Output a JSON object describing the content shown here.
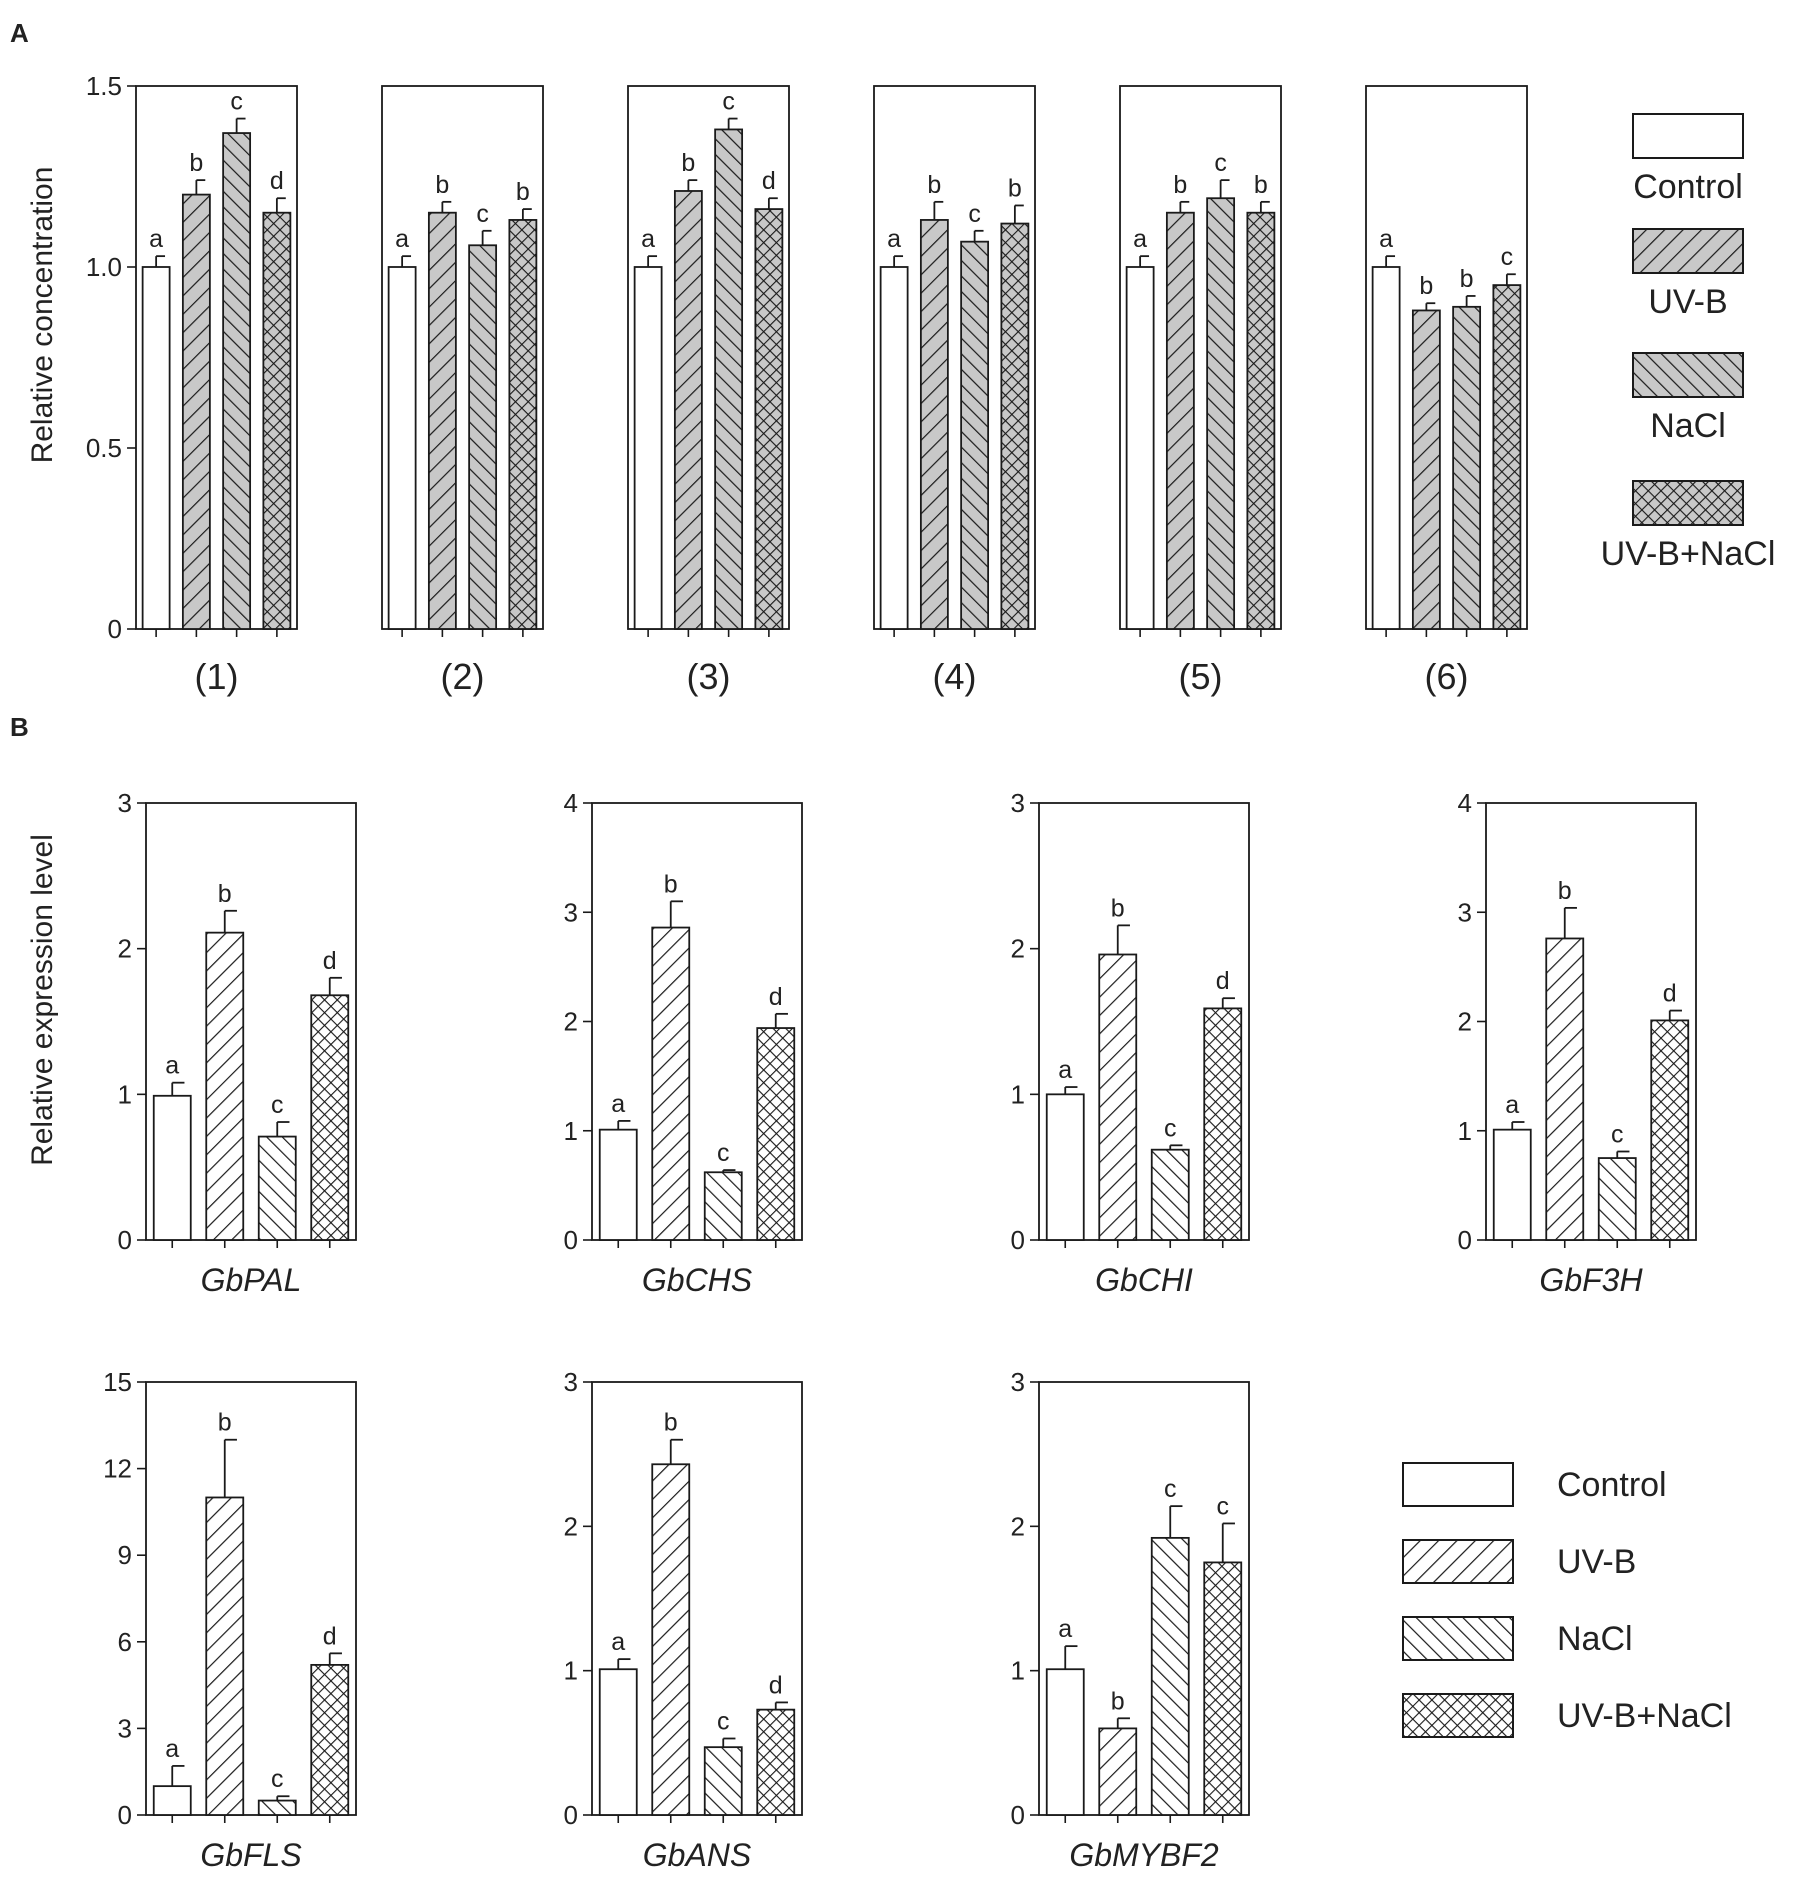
{
  "panel_labels": {
    "a": "A",
    "b": "B"
  },
  "colors": {
    "ink": "#1a1a1a",
    "bar_fill_A": "#c8c8c8",
    "bar_fill_B": "#ffffff"
  },
  "chart_data": [
    {
      "type": "bar",
      "id": "panelA",
      "panel": "A",
      "ylabel": "Relative concentration",
      "ylim": [
        0,
        1.5
      ],
      "yticks": [
        0,
        0.5,
        1.0,
        1.5
      ],
      "ytick_labels": [
        "0",
        "0.5",
        "1.0",
        "1.5"
      ],
      "series_names": [
        "Control",
        "UV-B",
        "NaCl",
        "UV-B+NaCl"
      ],
      "patterns": [
        "none",
        "diag-right",
        "diag-left",
        "cross"
      ],
      "groups": [
        {
          "label": "(1)",
          "values": [
            1.0,
            1.2,
            1.37,
            1.15
          ],
          "errors": [
            0.03,
            0.04,
            0.04,
            0.04
          ],
          "letters": [
            "a",
            "b",
            "c",
            "d"
          ]
        },
        {
          "label": "(2)",
          "values": [
            1.0,
            1.15,
            1.06,
            1.13
          ],
          "errors": [
            0.03,
            0.03,
            0.04,
            0.03
          ],
          "letters": [
            "a",
            "b",
            "c",
            "b"
          ]
        },
        {
          "label": "(3)",
          "values": [
            1.0,
            1.21,
            1.38,
            1.16
          ],
          "errors": [
            0.03,
            0.03,
            0.03,
            0.03
          ],
          "letters": [
            "a",
            "b",
            "c",
            "d"
          ]
        },
        {
          "label": "(4)",
          "values": [
            1.0,
            1.13,
            1.07,
            1.12
          ],
          "errors": [
            0.03,
            0.05,
            0.03,
            0.05
          ],
          "letters": [
            "a",
            "b",
            "c",
            "b"
          ]
        },
        {
          "label": "(5)",
          "values": [
            1.0,
            1.15,
            1.19,
            1.15
          ],
          "errors": [
            0.03,
            0.03,
            0.05,
            0.03
          ],
          "letters": [
            "a",
            "b",
            "c",
            "b"
          ]
        },
        {
          "label": "(6)",
          "values": [
            1.0,
            0.88,
            0.89,
            0.95
          ],
          "errors": [
            0.03,
            0.02,
            0.03,
            0.03
          ],
          "letters": [
            "a",
            "b",
            "b",
            "c"
          ]
        }
      ],
      "legend": {
        "placement": "right",
        "entries": [
          "Control",
          "UV-B",
          "NaCl",
          "UV-B+NaCl"
        ]
      }
    },
    {
      "type": "bar",
      "id": "panelB",
      "panel": "B",
      "ylabel": "Relative expression level",
      "series_names": [
        "Control",
        "UV-B",
        "NaCl",
        "UV-B+NaCl"
      ],
      "patterns": [
        "none",
        "diag-right",
        "diag-left",
        "cross"
      ],
      "genes": [
        {
          "label": "GbPAL",
          "ylim": [
            0,
            3
          ],
          "yticks": [
            "0",
            "1",
            "2",
            "3"
          ],
          "values": [
            0.99,
            2.11,
            0.71,
            1.68
          ],
          "errors": [
            0.09,
            0.15,
            0.1,
            0.12
          ],
          "letters": [
            "a",
            "b",
            "c",
            "d"
          ]
        },
        {
          "label": "GbCHS",
          "ylim": [
            0,
            4
          ],
          "yticks": [
            "0",
            "1",
            "2",
            "3",
            "4"
          ],
          "values": [
            1.01,
            2.86,
            0.62,
            1.94
          ],
          "errors": [
            0.08,
            0.24,
            0.02,
            0.13
          ],
          "letters": [
            "a",
            "b",
            "c",
            "d"
          ]
        },
        {
          "label": "GbCHI",
          "ylim": [
            0,
            3
          ],
          "yticks": [
            "0",
            "1",
            "2",
            "3"
          ],
          "values": [
            1.0,
            1.96,
            0.62,
            1.59
          ],
          "errors": [
            0.05,
            0.2,
            0.03,
            0.07
          ],
          "letters": [
            "a",
            "b",
            "c",
            "d"
          ]
        },
        {
          "label": "GbF3H",
          "ylim": [
            0,
            4
          ],
          "yticks": [
            "0",
            "1",
            "2",
            "3",
            "4"
          ],
          "values": [
            1.01,
            2.76,
            0.75,
            2.01
          ],
          "errors": [
            0.07,
            0.28,
            0.06,
            0.09
          ],
          "letters": [
            "a",
            "b",
            "c",
            "d"
          ]
        },
        {
          "label": "GbFLS",
          "ylim": [
            0,
            15
          ],
          "yticks": [
            "0",
            "3",
            "6",
            "9",
            "12",
            "15"
          ],
          "values": [
            1.0,
            11.0,
            0.5,
            5.2
          ],
          "errors": [
            0.7,
            2.0,
            0.15,
            0.4
          ],
          "letters": [
            "a",
            "b",
            "c",
            "d"
          ]
        },
        {
          "label": "GbANS",
          "ylim": [
            0,
            3
          ],
          "yticks": [
            "0",
            "1",
            "2",
            "3"
          ],
          "values": [
            1.01,
            2.43,
            0.47,
            0.73
          ],
          "errors": [
            0.07,
            0.17,
            0.06,
            0.05
          ],
          "letters": [
            "a",
            "b",
            "c",
            "d"
          ]
        },
        {
          "label": "GbMYBF2",
          "ylim": [
            0,
            3
          ],
          "yticks": [
            "0",
            "1",
            "2",
            "3"
          ],
          "values": [
            1.01,
            0.6,
            1.92,
            1.75
          ],
          "errors": [
            0.16,
            0.07,
            0.22,
            0.27
          ],
          "letters": [
            "a",
            "b",
            "c",
            "c"
          ]
        }
      ],
      "legend": {
        "placement": "bottom-right",
        "entries": [
          "Control",
          "UV-B",
          "NaCl",
          "UV-B+NaCl"
        ]
      }
    }
  ]
}
